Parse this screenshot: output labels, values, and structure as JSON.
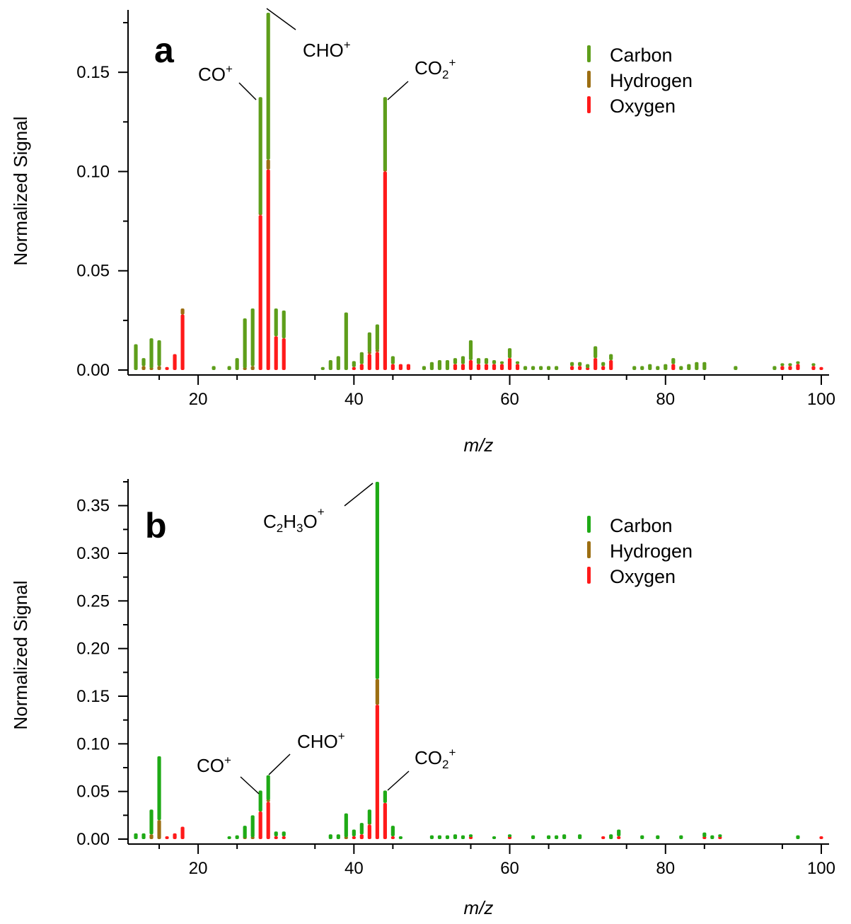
{
  "colors": {
    "carbon": "#5e9e1b",
    "carbon_b": "#1faa16",
    "hydrogen": "#9c6e12",
    "oxygen": "#ff1a1a"
  },
  "chart_data": [
    {
      "type": "bar",
      "panel": "a",
      "stacked": true,
      "xlabel": "m/z",
      "ylabel": "Normalized Signal",
      "xlim": [
        11,
        101
      ],
      "ylim": [
        0,
        0.18
      ],
      "xticks": [
        "20",
        "40",
        "60",
        "80",
        "100"
      ],
      "yticks": [
        "0.00",
        "0.05",
        "0.10",
        "0.15"
      ],
      "legend": {
        "position": "top-right",
        "entries": [
          "Carbon",
          "Hydrogen",
          "Oxygen"
        ]
      },
      "annotations": [
        {
          "label": "CO",
          "sup": "+",
          "x": 28
        },
        {
          "label": "CHO",
          "sup": "+",
          "x": 29
        },
        {
          "label": "CO",
          "sub": "2",
          "sup": "+",
          "x": 44
        }
      ],
      "series": [
        {
          "name": "Oxygen",
          "x": [
            16,
            17,
            18,
            28,
            29,
            30,
            31,
            40,
            41,
            42,
            43,
            44,
            45,
            46,
            47,
            53,
            54,
            55,
            56,
            57,
            58,
            59,
            60,
            61,
            68,
            69,
            70,
            71,
            72,
            73,
            81,
            95,
            96,
            97,
            99,
            100
          ],
          "values": [
            0.0015,
            0.008,
            0.028,
            0.078,
            0.101,
            0.017,
            0.016,
            0.0015,
            0.003,
            0.008,
            0.009,
            0.1,
            0.003,
            0.003,
            0.003,
            0.003,
            0.003,
            0.005,
            0.003,
            0.003,
            0.003,
            0.003,
            0.006,
            0.003,
            0.002,
            0.002,
            0.001,
            0.006,
            0.002,
            0.005,
            0.003,
            0.002,
            0.002,
            0.003,
            0.002,
            0.0015
          ]
        },
        {
          "name": "Hydrogen",
          "x": [
            13,
            14,
            15,
            18,
            26,
            27,
            28,
            29,
            42,
            43,
            44
          ],
          "values": [
            0.002,
            0.001,
            0.002,
            0.003,
            0.001,
            0.002,
            0.0005,
            0.005,
            0.001,
            0.001,
            0.0005
          ]
        },
        {
          "name": "Carbon",
          "x": [
            12,
            13,
            14,
            15,
            22,
            24,
            25,
            26,
            27,
            28,
            29,
            30,
            31,
            36,
            37,
            38,
            39,
            40,
            41,
            42,
            43,
            44,
            45,
            49,
            50,
            51,
            52,
            53,
            54,
            55,
            56,
            57,
            58,
            59,
            60,
            61,
            62,
            63,
            64,
            65,
            66,
            68,
            69,
            70,
            71,
            72,
            73,
            76,
            77,
            78,
            79,
            80,
            81,
            82,
            83,
            84,
            85,
            89,
            94,
            95,
            96,
            97,
            99
          ],
          "values": [
            0.013,
            0.004,
            0.015,
            0.013,
            0.002,
            0.002,
            0.006,
            0.025,
            0.029,
            0.059,
            0.074,
            0.014,
            0.014,
            0.0015,
            0.005,
            0.007,
            0.029,
            0.003,
            0.006,
            0.01,
            0.013,
            0.037,
            0.004,
            0.002,
            0.004,
            0.005,
            0.005,
            0.003,
            0.004,
            0.01,
            0.003,
            0.003,
            0.002,
            0.001,
            0.005,
            0.001,
            0.002,
            0.002,
            0.002,
            0.002,
            0.002,
            0.002,
            0.002,
            0.002,
            0.006,
            0.002,
            0.003,
            0.002,
            0.002,
            0.003,
            0.002,
            0.003,
            0.003,
            0.002,
            0.003,
            0.004,
            0.004,
            0.002,
            0.002,
            0.001,
            0.001,
            0.001,
            0.001
          ]
        }
      ]
    },
    {
      "type": "bar",
      "panel": "b",
      "stacked": true,
      "xlabel": "m/z",
      "ylabel": "Normalized Signal",
      "xlim": [
        11,
        101
      ],
      "ylim": [
        0,
        0.375
      ],
      "xticks": [
        "20",
        "40",
        "60",
        "80",
        "100"
      ],
      "yticks": [
        "0.00",
        "0.05",
        "0.10",
        "0.15",
        "0.20",
        "0.25",
        "0.30",
        "0.35"
      ],
      "legend": {
        "position": "top-right",
        "entries": [
          "Carbon",
          "Hydrogen",
          "Oxygen"
        ]
      },
      "annotations": [
        {
          "label": "CO",
          "sup": "+",
          "x": 28
        },
        {
          "label": "CHO",
          "sup": "+",
          "x": 29
        },
        {
          "label": "C2H3O",
          "sup": "+",
          "x": 43
        },
        {
          "label": "CO",
          "sub": "2",
          "sup": "+",
          "x": 44
        }
      ],
      "series": [
        {
          "name": "Oxygen",
          "x": [
            16,
            17,
            18,
            28,
            29,
            30,
            31,
            40,
            41,
            42,
            43,
            44,
            45,
            55,
            60,
            72,
            74,
            85,
            87,
            100
          ],
          "values": [
            0.002,
            0.006,
            0.013,
            0.029,
            0.039,
            0.003,
            0.003,
            0.003,
            0.005,
            0.015,
            0.141,
            0.038,
            0.003,
            0.002,
            0.002,
            0.002,
            0.003,
            0.002,
            0.002,
            0.002
          ]
        },
        {
          "name": "Hydrogen",
          "x": [
            14,
            15,
            26,
            27,
            29,
            39,
            42,
            43
          ],
          "values": [
            0.005,
            0.02,
            0.001,
            0.002,
            0.002,
            0.002,
            0.001,
            0.027
          ]
        },
        {
          "name": "Carbon",
          "x": [
            12,
            13,
            14,
            15,
            24,
            25,
            26,
            27,
            28,
            29,
            30,
            31,
            37,
            38,
            39,
            40,
            41,
            42,
            43,
            44,
            45,
            46,
            50,
            51,
            52,
            53,
            54,
            55,
            58,
            60,
            63,
            65,
            66,
            67,
            69,
            73,
            74,
            77,
            79,
            82,
            85,
            86,
            87,
            97
          ],
          "values": [
            0.006,
            0.006,
            0.026,
            0.067,
            0.003,
            0.004,
            0.013,
            0.023,
            0.022,
            0.026,
            0.005,
            0.005,
            0.005,
            0.005,
            0.025,
            0.007,
            0.012,
            0.015,
            0.207,
            0.013,
            0.011,
            0.003,
            0.004,
            0.004,
            0.004,
            0.005,
            0.004,
            0.003,
            0.003,
            0.002,
            0.004,
            0.004,
            0.004,
            0.005,
            0.005,
            0.005,
            0.007,
            0.004,
            0.004,
            0.004,
            0.005,
            0.004,
            0.003,
            0.004
          ]
        }
      ]
    }
  ]
}
